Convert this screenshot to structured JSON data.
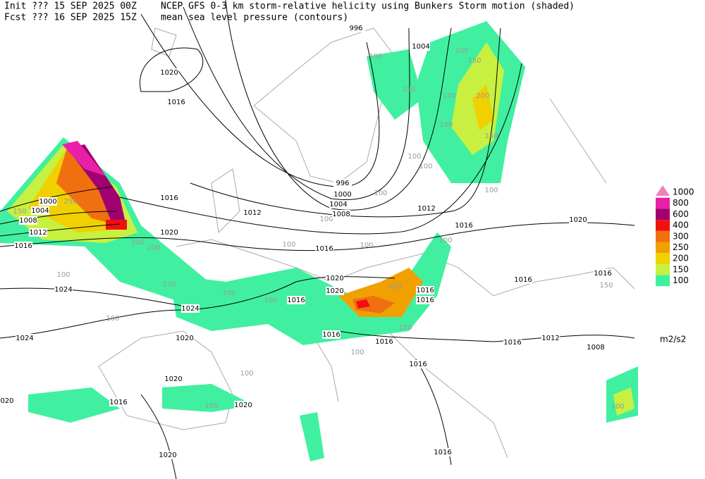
{
  "header": {
    "init": "Init  ??? 15 SEP 2025 00Z",
    "fcst": "Fcst ??? 16 SEP 2025 15Z",
    "title": "NCEP GFS 0-3 km storm-relative helicity using Bunkers Storm motion (shaded)",
    "subtitle": "mean sea level pressure (contours)"
  },
  "legend": {
    "items": [
      {
        "value": 1000,
        "color": "#f080b8"
      },
      {
        "value": 800,
        "color": "#e820a8"
      },
      {
        "value": 600,
        "color": "#a00070"
      },
      {
        "value": 400,
        "color": "#f01010"
      },
      {
        "value": 300,
        "color": "#f07010"
      },
      {
        "value": 250,
        "color": "#f0a000"
      },
      {
        "value": 200,
        "color": "#f0d000"
      },
      {
        "value": 150,
        "color": "#c8f040"
      },
      {
        "value": 100,
        "color": "#40f0a0"
      }
    ],
    "unit": "m2/s2"
  },
  "isobar_labels": [
    996,
    1004,
    1020,
    1016,
    996,
    1000,
    1004,
    1008,
    1012,
    1012,
    1016,
    1016,
    1020,
    1020,
    1016,
    1020,
    1020,
    1016,
    1016,
    1016,
    1016,
    1016,
    1024,
    1024,
    1024,
    1020,
    1016,
    1016,
    1016,
    1012,
    1008,
    1016,
    1020,
    1016,
    1020,
    "020",
    1020,
    1016,
    1000,
    1004,
    1008,
    1012,
    1016
  ],
  "helicity_labels": [
    100,
    100,
    150,
    150,
    200,
    150,
    150,
    100,
    100,
    100,
    100,
    100,
    100,
    100,
    100,
    100,
    250,
    150,
    200,
    300,
    150,
    100,
    100,
    100,
    100,
    150,
    200,
    100,
    100,
    100,
    150,
    100
  ]
}
